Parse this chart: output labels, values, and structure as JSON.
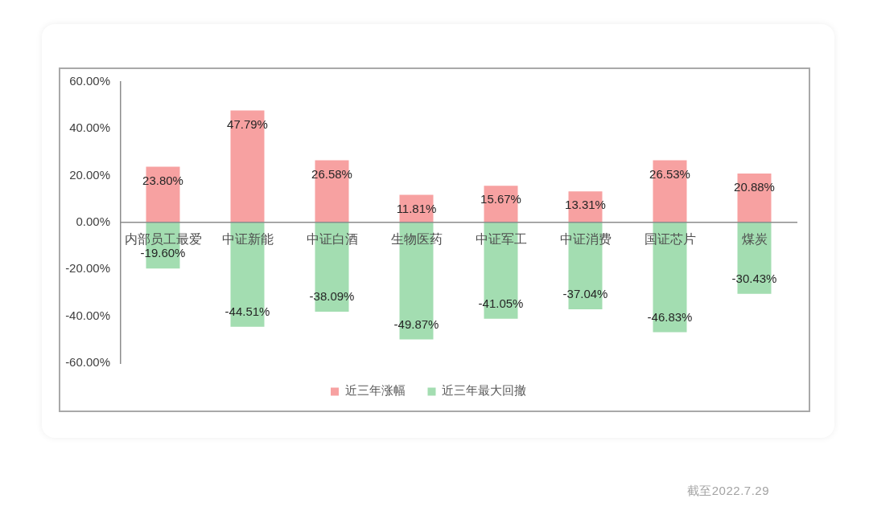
{
  "chart_data": {
    "type": "bar",
    "stacked": true,
    "categories": [
      "内部员工最爱",
      "中证新能",
      "中证白酒",
      "生物医药",
      "中证军工",
      "中证消费",
      "国证芯片",
      "煤炭"
    ],
    "series": [
      {
        "name": "近三年涨幅",
        "color": "#f7a1a1",
        "values": [
          23.8,
          47.79,
          26.58,
          11.81,
          15.67,
          13.31,
          26.53,
          20.88
        ],
        "value_labels": [
          "23.80%",
          "47.79%",
          "26.58%",
          "11.81%",
          "15.67%",
          "13.31%",
          "26.53%",
          "20.88%"
        ]
      },
      {
        "name": "近三年最大回撤",
        "color": "#a3ddb1",
        "values": [
          -19.6,
          -44.51,
          -38.09,
          -49.87,
          -41.05,
          -37.04,
          -46.83,
          -30.43
        ],
        "value_labels": [
          "-19.60%",
          "-44.51%",
          "-38.09%",
          "-49.87%",
          "-41.05%",
          "-37.04%",
          "-46.83%",
          "-30.43%"
        ]
      }
    ],
    "ylim": [
      -60,
      60
    ],
    "yticks": [
      {
        "value": -60,
        "label": "-60.00%"
      },
      {
        "value": -40,
        "label": "-40.00%"
      },
      {
        "value": -20,
        "label": "-20.00%"
      },
      {
        "value": 0,
        "label": "0.00%"
      },
      {
        "value": 20,
        "label": "20.00%"
      },
      {
        "value": 40,
        "label": "40.00%"
      },
      {
        "value": 60,
        "label": "60.00%"
      }
    ],
    "grid": false,
    "legend": "bottom",
    "annotations": [
      "截至2022.7.29"
    ]
  }
}
